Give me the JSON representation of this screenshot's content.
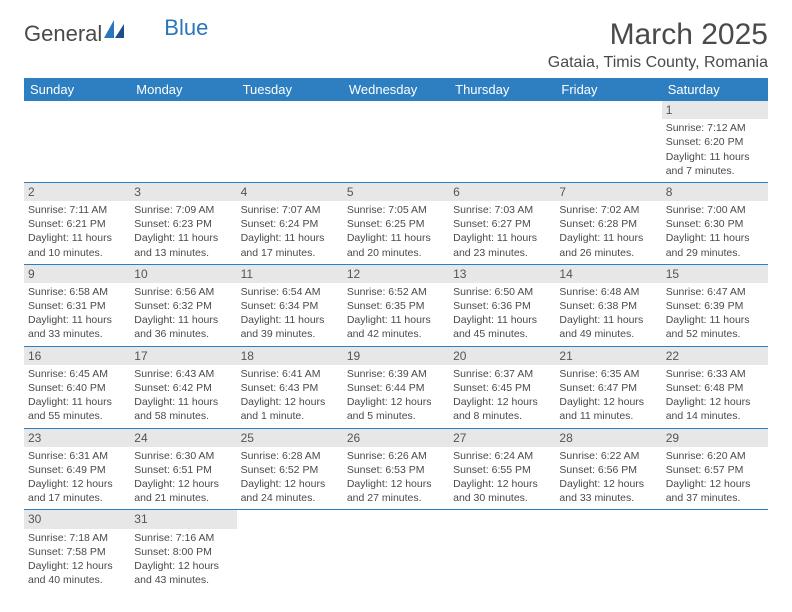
{
  "logo": {
    "general": "General",
    "blue": "Blue"
  },
  "title": "March 2025",
  "location": "Gataia, Timis County, Romania",
  "colors": {
    "header_bg": "#2e7fc1",
    "header_text": "#ffffff",
    "daynum_bg": "#e7e7e7",
    "border": "#2e7fc1",
    "text": "#4a4a4a",
    "logo_blue": "#2976bb"
  },
  "weekdays": [
    "Sunday",
    "Monday",
    "Tuesday",
    "Wednesday",
    "Thursday",
    "Friday",
    "Saturday"
  ],
  "weeks": [
    [
      null,
      null,
      null,
      null,
      null,
      null,
      {
        "n": "1",
        "sr": "Sunrise: 7:12 AM",
        "ss": "Sunset: 6:20 PM",
        "d1": "Daylight: 11 hours",
        "d2": "and 7 minutes."
      }
    ],
    [
      {
        "n": "2",
        "sr": "Sunrise: 7:11 AM",
        "ss": "Sunset: 6:21 PM",
        "d1": "Daylight: 11 hours",
        "d2": "and 10 minutes."
      },
      {
        "n": "3",
        "sr": "Sunrise: 7:09 AM",
        "ss": "Sunset: 6:23 PM",
        "d1": "Daylight: 11 hours",
        "d2": "and 13 minutes."
      },
      {
        "n": "4",
        "sr": "Sunrise: 7:07 AM",
        "ss": "Sunset: 6:24 PM",
        "d1": "Daylight: 11 hours",
        "d2": "and 17 minutes."
      },
      {
        "n": "5",
        "sr": "Sunrise: 7:05 AM",
        "ss": "Sunset: 6:25 PM",
        "d1": "Daylight: 11 hours",
        "d2": "and 20 minutes."
      },
      {
        "n": "6",
        "sr": "Sunrise: 7:03 AM",
        "ss": "Sunset: 6:27 PM",
        "d1": "Daylight: 11 hours",
        "d2": "and 23 minutes."
      },
      {
        "n": "7",
        "sr": "Sunrise: 7:02 AM",
        "ss": "Sunset: 6:28 PM",
        "d1": "Daylight: 11 hours",
        "d2": "and 26 minutes."
      },
      {
        "n": "8",
        "sr": "Sunrise: 7:00 AM",
        "ss": "Sunset: 6:30 PM",
        "d1": "Daylight: 11 hours",
        "d2": "and 29 minutes."
      }
    ],
    [
      {
        "n": "9",
        "sr": "Sunrise: 6:58 AM",
        "ss": "Sunset: 6:31 PM",
        "d1": "Daylight: 11 hours",
        "d2": "and 33 minutes."
      },
      {
        "n": "10",
        "sr": "Sunrise: 6:56 AM",
        "ss": "Sunset: 6:32 PM",
        "d1": "Daylight: 11 hours",
        "d2": "and 36 minutes."
      },
      {
        "n": "11",
        "sr": "Sunrise: 6:54 AM",
        "ss": "Sunset: 6:34 PM",
        "d1": "Daylight: 11 hours",
        "d2": "and 39 minutes."
      },
      {
        "n": "12",
        "sr": "Sunrise: 6:52 AM",
        "ss": "Sunset: 6:35 PM",
        "d1": "Daylight: 11 hours",
        "d2": "and 42 minutes."
      },
      {
        "n": "13",
        "sr": "Sunrise: 6:50 AM",
        "ss": "Sunset: 6:36 PM",
        "d1": "Daylight: 11 hours",
        "d2": "and 45 minutes."
      },
      {
        "n": "14",
        "sr": "Sunrise: 6:48 AM",
        "ss": "Sunset: 6:38 PM",
        "d1": "Daylight: 11 hours",
        "d2": "and 49 minutes."
      },
      {
        "n": "15",
        "sr": "Sunrise: 6:47 AM",
        "ss": "Sunset: 6:39 PM",
        "d1": "Daylight: 11 hours",
        "d2": "and 52 minutes."
      }
    ],
    [
      {
        "n": "16",
        "sr": "Sunrise: 6:45 AM",
        "ss": "Sunset: 6:40 PM",
        "d1": "Daylight: 11 hours",
        "d2": "and 55 minutes."
      },
      {
        "n": "17",
        "sr": "Sunrise: 6:43 AM",
        "ss": "Sunset: 6:42 PM",
        "d1": "Daylight: 11 hours",
        "d2": "and 58 minutes."
      },
      {
        "n": "18",
        "sr": "Sunrise: 6:41 AM",
        "ss": "Sunset: 6:43 PM",
        "d1": "Daylight: 12 hours",
        "d2": "and 1 minute."
      },
      {
        "n": "19",
        "sr": "Sunrise: 6:39 AM",
        "ss": "Sunset: 6:44 PM",
        "d1": "Daylight: 12 hours",
        "d2": "and 5 minutes."
      },
      {
        "n": "20",
        "sr": "Sunrise: 6:37 AM",
        "ss": "Sunset: 6:45 PM",
        "d1": "Daylight: 12 hours",
        "d2": "and 8 minutes."
      },
      {
        "n": "21",
        "sr": "Sunrise: 6:35 AM",
        "ss": "Sunset: 6:47 PM",
        "d1": "Daylight: 12 hours",
        "d2": "and 11 minutes."
      },
      {
        "n": "22",
        "sr": "Sunrise: 6:33 AM",
        "ss": "Sunset: 6:48 PM",
        "d1": "Daylight: 12 hours",
        "d2": "and 14 minutes."
      }
    ],
    [
      {
        "n": "23",
        "sr": "Sunrise: 6:31 AM",
        "ss": "Sunset: 6:49 PM",
        "d1": "Daylight: 12 hours",
        "d2": "and 17 minutes."
      },
      {
        "n": "24",
        "sr": "Sunrise: 6:30 AM",
        "ss": "Sunset: 6:51 PM",
        "d1": "Daylight: 12 hours",
        "d2": "and 21 minutes."
      },
      {
        "n": "25",
        "sr": "Sunrise: 6:28 AM",
        "ss": "Sunset: 6:52 PM",
        "d1": "Daylight: 12 hours",
        "d2": "and 24 minutes."
      },
      {
        "n": "26",
        "sr": "Sunrise: 6:26 AM",
        "ss": "Sunset: 6:53 PM",
        "d1": "Daylight: 12 hours",
        "d2": "and 27 minutes."
      },
      {
        "n": "27",
        "sr": "Sunrise: 6:24 AM",
        "ss": "Sunset: 6:55 PM",
        "d1": "Daylight: 12 hours",
        "d2": "and 30 minutes."
      },
      {
        "n": "28",
        "sr": "Sunrise: 6:22 AM",
        "ss": "Sunset: 6:56 PM",
        "d1": "Daylight: 12 hours",
        "d2": "and 33 minutes."
      },
      {
        "n": "29",
        "sr": "Sunrise: 6:20 AM",
        "ss": "Sunset: 6:57 PM",
        "d1": "Daylight: 12 hours",
        "d2": "and 37 minutes."
      }
    ],
    [
      {
        "n": "30",
        "sr": "Sunrise: 7:18 AM",
        "ss": "Sunset: 7:58 PM",
        "d1": "Daylight: 12 hours",
        "d2": "and 40 minutes."
      },
      {
        "n": "31",
        "sr": "Sunrise: 7:16 AM",
        "ss": "Sunset: 8:00 PM",
        "d1": "Daylight: 12 hours",
        "d2": "and 43 minutes."
      },
      null,
      null,
      null,
      null,
      null
    ]
  ]
}
